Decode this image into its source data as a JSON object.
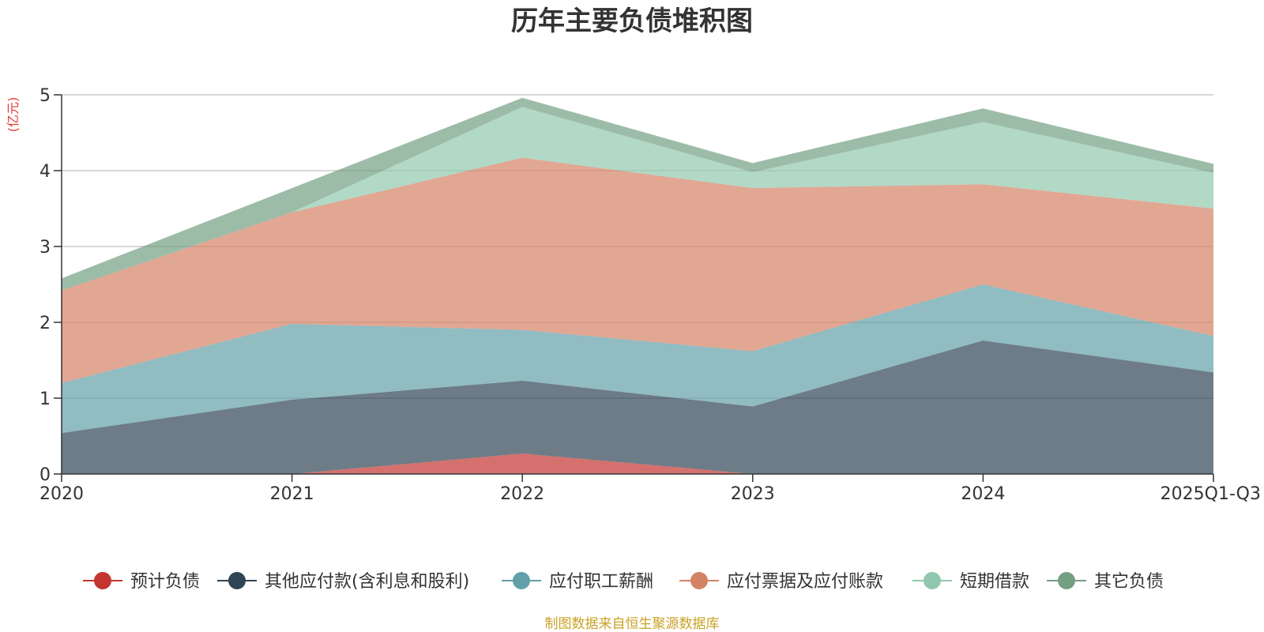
{
  "chart_data": {
    "type": "area",
    "stacked": true,
    "title": "历年主要负债堆积图",
    "unit_label": "(亿元)",
    "categories": [
      "2020",
      "2021",
      "2022",
      "2023",
      "2024",
      "2025Q1-Q3"
    ],
    "ylim": [
      0,
      5
    ],
    "yticks": [
      "0",
      "1",
      "2",
      "3",
      "4",
      "5"
    ],
    "grid": true,
    "legend_position": "bottom",
    "series": [
      {
        "name": "预计负债",
        "color": "#c23531",
        "values": [
          0,
          0,
          0.27,
          0,
          0,
          0
        ]
      },
      {
        "name": "其他应付款(含利息和股利)",
        "color": "#2f4554",
        "values": [
          0.54,
          0.98,
          0.96,
          0.89,
          1.76,
          1.34
        ]
      },
      {
        "name": "应付职工薪酬",
        "color": "#61a0a8",
        "values": [
          0.66,
          1.0,
          0.67,
          0.73,
          0.74,
          0.48
        ]
      },
      {
        "name": "应付票据及应付账款",
        "color": "#d48265",
        "values": [
          1.22,
          1.47,
          2.27,
          2.15,
          1.32,
          1.68
        ]
      },
      {
        "name": "短期借款",
        "color": "#91c7ae",
        "values": [
          0,
          0,
          0.67,
          0.21,
          0.82,
          0.47
        ]
      },
      {
        "name": "其它负债",
        "color": "#749f83",
        "values": [
          0.16,
          0.32,
          0.12,
          0.12,
          0.18,
          0.12
        ]
      }
    ],
    "source": "制图数据来自恒生聚源数据库"
  }
}
